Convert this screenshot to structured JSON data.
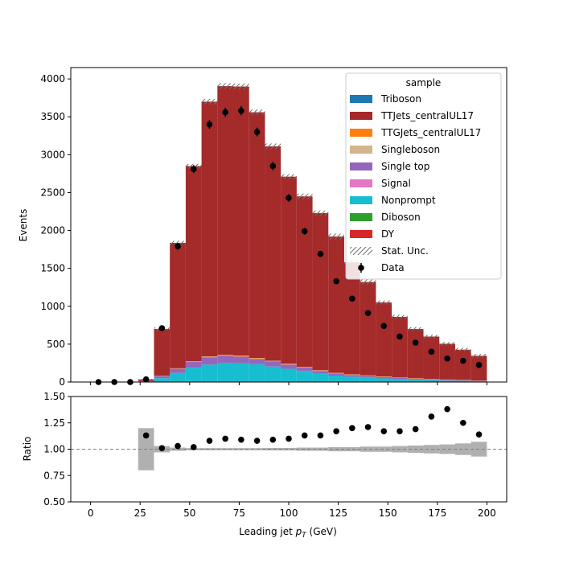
{
  "chart_data": {
    "type": "bar",
    "stacked": true,
    "xlabel": "Leading jet  p_T (GeV)",
    "xlabel_main": "Leading jet  ",
    "xlabel_sym": "p",
    "xlabel_sub": "T",
    "xlabel_unit": " (GeV)",
    "ylabel": "Events",
    "ratio_ylabel": "Ratio",
    "xlim": [
      -10,
      210
    ],
    "ylim": [
      0,
      4150
    ],
    "ratio_ylim": [
      0.5,
      1.5
    ],
    "xticks": [
      0,
      25,
      50,
      75,
      100,
      125,
      150,
      175,
      200
    ],
    "yticks": [
      0,
      500,
      1000,
      1500,
      2000,
      2500,
      3000,
      3500,
      4000
    ],
    "ratio_yticks": [
      "0.50",
      "0.75",
      "1.00",
      "1.25",
      "1.50"
    ],
    "legend": {
      "title": "sample",
      "placement": "top-right",
      "entries": [
        "Triboson",
        "TTJets_centralUL17",
        "TTGJets_centralUL17",
        "Singleboson",
        "Single top",
        "Signal",
        "Nonprompt",
        "Diboson",
        "DY",
        "Stat. Unc.",
        "Data"
      ]
    },
    "bin_edges": [
      0,
      8,
      16,
      24,
      32,
      40,
      48,
      56,
      64,
      72,
      80,
      88,
      96,
      104,
      112,
      120,
      128,
      136,
      144,
      152,
      160,
      168,
      176,
      184,
      192,
      200
    ],
    "series": [
      {
        "name": "Nonprompt",
        "color": "#17becf",
        "values": [
          0,
          0,
          0,
          10,
          50,
          120,
          190,
          230,
          255,
          250,
          235,
          205,
          175,
          145,
          110,
          85,
          70,
          60,
          48,
          38,
          30,
          25,
          18,
          15,
          10
        ]
      },
      {
        "name": "Single top",
        "color": "#9467bd",
        "values": [
          0,
          0,
          0,
          5,
          30,
          55,
          75,
          95,
          90,
          85,
          70,
          65,
          55,
          45,
          35,
          28,
          23,
          20,
          18,
          16,
          14,
          12,
          10,
          8,
          6
        ]
      },
      {
        "name": "TTGJets_centralUL17",
        "color": "#ff7f0e",
        "values": [
          0,
          0,
          0,
          0,
          2,
          4,
          6,
          8,
          8,
          8,
          8,
          7,
          7,
          6,
          6,
          5,
          5,
          5,
          4,
          4,
          4,
          3,
          3,
          3,
          3
        ]
      },
      {
        "name": "Singleboson",
        "color": "#d4b48c",
        "values": [
          0,
          0,
          0,
          0,
          2,
          3,
          4,
          5,
          5,
          5,
          5,
          4,
          4,
          4,
          4,
          3,
          3,
          3,
          3,
          2,
          2,
          2,
          2,
          2,
          2
        ]
      },
      {
        "name": "TTJets_centralUL17",
        "color": "#a52a2a",
        "values": [
          0,
          0,
          0,
          20,
          616,
          1655,
          2575,
          3362,
          3547,
          3552,
          3242,
          2829,
          2469,
          2250,
          2075,
          1799,
          1479,
          1232,
          977,
          800,
          650,
          558,
          472,
          399,
          325
        ]
      }
    ],
    "unc_frac": [
      0,
      0,
      0,
      0.2,
      0.03,
      0.015,
      0.01,
      0.01,
      0.01,
      0.01,
      0.01,
      0.012,
      0.012,
      0.015,
      0.015,
      0.02,
      0.02,
      0.025,
      0.025,
      0.03,
      0.035,
      0.04,
      0.045,
      0.055,
      0.07
    ],
    "data": {
      "name": "Data",
      "x": [
        4,
        12,
        20,
        28,
        36,
        44,
        52,
        60,
        68,
        76,
        84,
        92,
        100,
        108,
        116,
        124,
        132,
        140,
        148,
        156,
        164,
        172,
        180,
        188,
        196
      ],
      "y": [
        0,
        0,
        0,
        35,
        710,
        1790,
        2810,
        3400,
        3560,
        3580,
        3300,
        2850,
        2430,
        1990,
        1690,
        1330,
        1100,
        910,
        740,
        600,
        520,
        400,
        310,
        280,
        225
      ]
    },
    "ratio": {
      "x": [
        28,
        36,
        44,
        52,
        60,
        68,
        76,
        84,
        92,
        100,
        108,
        116,
        124,
        132,
        140,
        148,
        156,
        164,
        172,
        180,
        188,
        196
      ],
      "y": [
        1.13,
        1.01,
        1.03,
        1.02,
        1.08,
        1.1,
        1.09,
        1.08,
        1.09,
        1.1,
        1.13,
        1.13,
        1.17,
        1.2,
        1.21,
        1.17,
        1.17,
        1.19,
        1.31,
        1.38,
        1.25,
        1.14
      ]
    },
    "colors": {
      "Triboson": "#1f77b4",
      "TTJets_centralUL17": "#a52a2a",
      "TTGJets_centralUL17": "#ff7f0e",
      "Singleboson": "#d4b48c",
      "Single top": "#9467bd",
      "Signal": "#e377c2",
      "Nonprompt": "#17becf",
      "Diboson": "#2ca02c",
      "DY": "#d62728",
      "unc_band": "#b0b0b0",
      "data": "#000000"
    }
  }
}
